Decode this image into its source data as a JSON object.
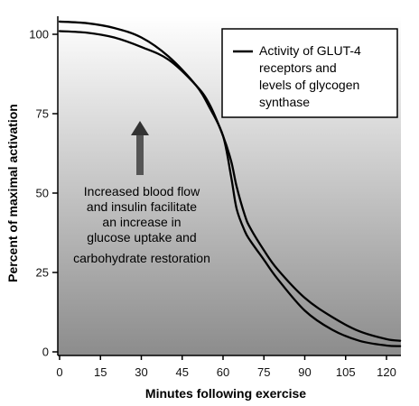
{
  "chart_data": {
    "type": "line",
    "title": "",
    "xlabel": "Minutes following exercise",
    "ylabel": "Percent of maximal activation",
    "xlim": [
      0,
      125
    ],
    "ylim": [
      0,
      105
    ],
    "x_ticks": [
      0,
      15,
      30,
      45,
      60,
      75,
      90,
      105,
      120
    ],
    "y_ticks": [
      0,
      25,
      50,
      75,
      100
    ],
    "grid": false,
    "legend": {
      "position": "top-right",
      "lines": [
        "Activity of GLUT-4",
        "receptors and",
        "levels of glycogen",
        "synthase"
      ]
    },
    "annotation": {
      "lines": [
        "Increased blood flow",
        "and insulin facilitate",
        "an increase in",
        "glucose uptake and",
        "carbohydrate restoration"
      ],
      "arrow_direction": "up"
    },
    "background": {
      "gradient_top": "#ffffff",
      "gradient_bottom": "#8c8c8c"
    },
    "line_color": "#000000",
    "series": [
      {
        "x": [
          0,
          10,
          20,
          30,
          40,
          50,
          55,
          60,
          63,
          65,
          68,
          70,
          75,
          80,
          90,
          100,
          110,
          120,
          125
        ],
        "values": [
          101,
          100.5,
          99,
          96,
          92,
          84,
          78,
          68,
          60,
          52,
          43,
          39,
          32,
          26,
          17,
          11,
          6.5,
          4,
          3.5
        ]
      },
      {
        "x": [
          0,
          10,
          20,
          30,
          40,
          50,
          55,
          60,
          63,
          65,
          68,
          70,
          75,
          80,
          90,
          100,
          110,
          120,
          125
        ],
        "values": [
          104,
          103.5,
          102,
          99,
          93,
          84,
          77,
          68,
          55,
          45,
          38,
          35,
          29,
          23,
          13,
          7,
          3.5,
          2,
          1.8
        ]
      }
    ]
  }
}
